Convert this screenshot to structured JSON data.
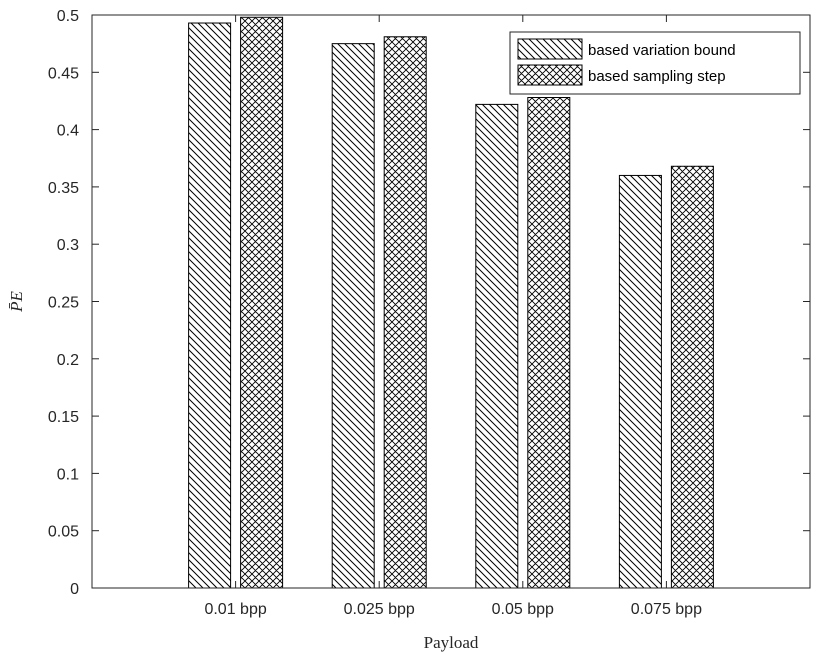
{
  "chart_data": {
    "type": "bar",
    "categories": [
      "0.01 bpp",
      "0.025 bpp",
      "0.05 bpp",
      "0.075 bpp"
    ],
    "series": [
      {
        "name": "based variation bound",
        "values": [
          0.493,
          0.475,
          0.422,
          0.36
        ],
        "pattern": "diagonal-hatch"
      },
      {
        "name": "based sampling step",
        "values": [
          0.498,
          0.481,
          0.428,
          0.368
        ],
        "pattern": "crosshatch"
      }
    ],
    "xlabel": "Payload",
    "ylabel": "P̄E",
    "ylim": [
      0,
      0.5
    ],
    "yticks": [
      "0",
      "0.05",
      "0.1",
      "0.15",
      "0.2",
      "0.25",
      "0.3",
      "0.35",
      "0.4",
      "0.45",
      "0.5"
    ],
    "grid": false,
    "legend_position": "top-right",
    "colors": {
      "stroke": "#000000",
      "fill": "#ffffff",
      "axis": "#262626"
    }
  }
}
